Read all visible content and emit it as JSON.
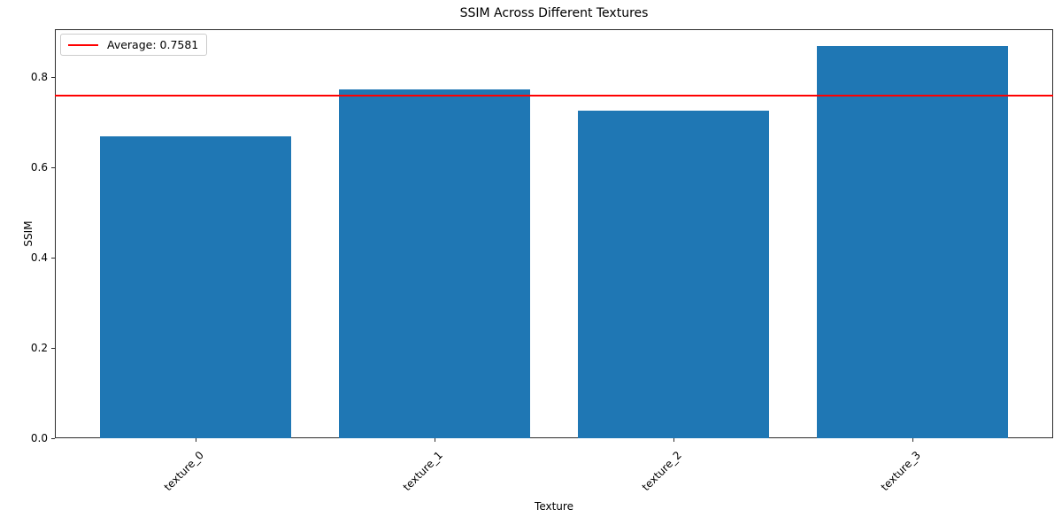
{
  "chart_data": {
    "type": "bar",
    "title": "SSIM Across Different Textures",
    "xlabel": "Texture",
    "ylabel": "SSIM",
    "categories": [
      "texture_0",
      "texture_1",
      "texture_2",
      "texture_3"
    ],
    "values": [
      0.668,
      0.772,
      0.725,
      0.868
    ],
    "average": 0.7581,
    "legend_label": "Average: 0.7581",
    "legend_position": "upper left",
    "bar_color": "#1f77b4",
    "avg_line_color": "#ff0000",
    "axis_color": "#2b2b2b",
    "ytick_labels": [
      "0.0",
      "0.2",
      "0.4",
      "0.6",
      "0.8"
    ],
    "ylim": [
      0,
      0.906
    ],
    "xlim": [
      -0.59,
      3.59
    ],
    "bar_width_units": 0.8,
    "grid": false
  }
}
